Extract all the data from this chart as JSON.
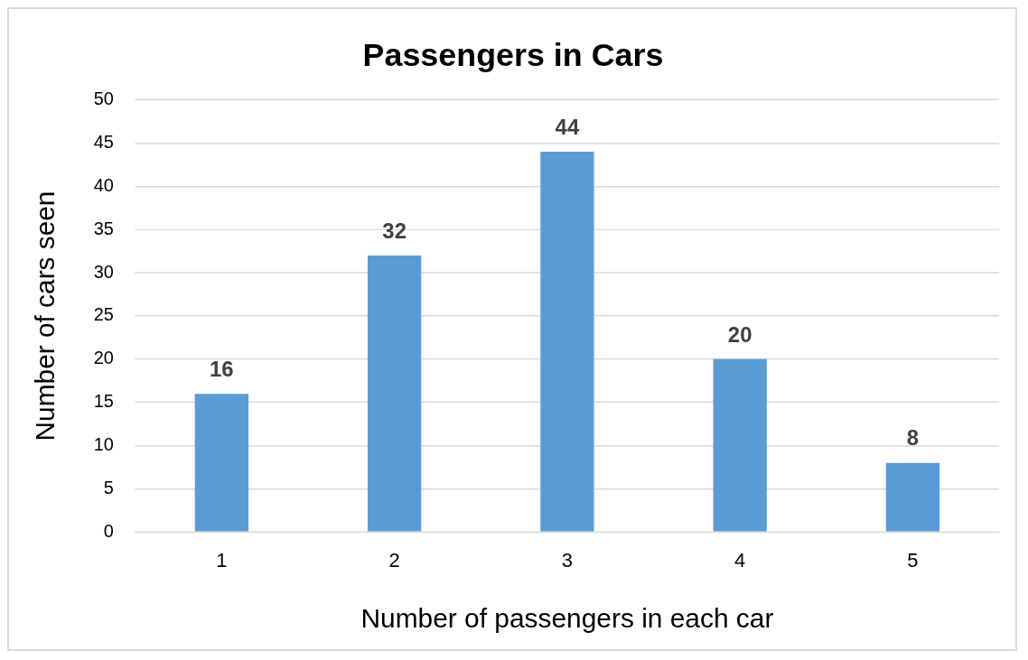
{
  "chart_data": {
    "type": "bar",
    "title": "Passengers in Cars",
    "xlabel": "Number of passengers in each car",
    "ylabel": "Number of cars seen",
    "categories": [
      "1",
      "2",
      "3",
      "4",
      "5"
    ],
    "series": [
      {
        "color": "#5b9bd5",
        "values": [
          16,
          32,
          44,
          20,
          8
        ]
      }
    ],
    "ylim": [
      0,
      50
    ],
    "yticks": [
      0,
      5,
      10,
      15,
      20,
      25,
      30,
      35,
      40,
      45,
      50
    ],
    "grid": "y",
    "legend": false,
    "data_labels": true
  }
}
